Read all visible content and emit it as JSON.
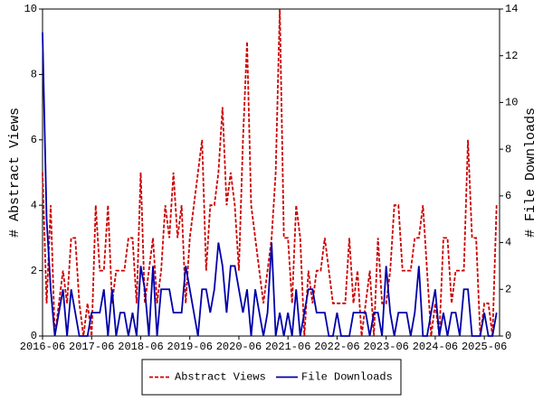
{
  "chart_data": {
    "type": "line",
    "x": [
      "2016-06",
      "2016-07",
      "2016-08",
      "2016-09",
      "2016-10",
      "2016-11",
      "2016-12",
      "2017-01",
      "2017-02",
      "2017-03",
      "2017-04",
      "2017-05",
      "2017-06",
      "2017-07",
      "2017-08",
      "2017-09",
      "2017-10",
      "2017-11",
      "2017-12",
      "2018-01",
      "2018-02",
      "2018-03",
      "2018-04",
      "2018-05",
      "2018-06",
      "2018-07",
      "2018-08",
      "2018-09",
      "2018-10",
      "2018-11",
      "2018-12",
      "2019-01",
      "2019-02",
      "2019-03",
      "2019-04",
      "2019-05",
      "2019-06",
      "2019-07",
      "2019-08",
      "2019-09",
      "2019-10",
      "2019-11",
      "2019-12",
      "2020-01",
      "2020-02",
      "2020-03",
      "2020-04",
      "2020-05",
      "2020-06",
      "2020-07",
      "2020-08",
      "2020-09",
      "2020-10",
      "2020-11",
      "2020-12",
      "2021-01",
      "2021-02",
      "2021-03",
      "2021-04",
      "2021-05",
      "2021-06",
      "2021-07",
      "2021-08",
      "2021-09",
      "2021-10",
      "2021-11",
      "2021-12",
      "2022-01",
      "2022-02",
      "2022-03",
      "2022-04",
      "2022-05",
      "2022-06",
      "2022-07",
      "2022-08",
      "2022-09",
      "2022-10",
      "2022-11",
      "2022-12",
      "2023-01",
      "2023-02",
      "2023-03",
      "2023-04",
      "2023-05",
      "2023-06",
      "2023-07",
      "2023-08",
      "2023-09",
      "2023-10",
      "2023-11",
      "2023-12",
      "2024-01",
      "2024-02",
      "2024-03",
      "2024-04",
      "2024-05",
      "2024-06",
      "2024-07",
      "2024-08",
      "2024-09",
      "2024-10",
      "2024-11",
      "2024-12",
      "2025-01",
      "2025-02",
      "2025-03",
      "2025-04",
      "2025-05",
      "2025-06",
      "2025-07",
      "2025-08",
      "2025-09"
    ],
    "xticks": [
      "2016-06",
      "2017-06",
      "2018-06",
      "2019-06",
      "2020-06",
      "2021-06",
      "2022-06",
      "2023-06",
      "2024-06",
      "2025-06"
    ],
    "ylabel": "# Abstract Views",
    "y2label": "# File Downloads",
    "ylim": [
      0,
      10
    ],
    "yticks": [
      0,
      2,
      4,
      6,
      8,
      10
    ],
    "y2lim": [
      0,
      14
    ],
    "y2ticks": [
      0,
      2,
      4,
      6,
      8,
      10,
      12,
      14
    ],
    "legend": "bottom",
    "series": [
      {
        "name": "Abstract Views",
        "color": "#cc0000",
        "dash": true,
        "values": [
          5,
          1,
          4,
          0,
          1,
          2,
          1,
          3,
          3,
          1,
          0,
          1,
          0,
          4,
          2,
          2,
          4,
          1,
          2,
          2,
          2,
          3,
          3,
          1,
          5,
          1,
          2,
          3,
          1,
          2,
          4,
          3,
          5,
          3,
          4,
          1,
          3,
          4,
          5,
          6,
          2,
          4,
          4,
          5,
          7,
          4,
          5,
          4,
          2,
          6,
          9,
          4,
          3,
          2,
          1,
          2,
          3,
          5,
          10,
          3,
          3,
          1,
          4,
          3,
          0,
          2,
          1,
          2,
          2,
          3,
          2,
          1,
          1,
          1,
          1,
          3,
          1,
          2,
          0,
          1,
          2,
          0,
          3,
          1,
          1,
          2,
          4,
          4,
          2,
          2,
          2,
          3,
          3,
          4,
          2,
          0,
          1,
          0,
          3,
          3,
          1,
          2,
          2,
          2,
          6,
          3,
          3,
          0,
          1,
          1,
          0,
          4
        ]
      },
      {
        "name": "File Downloads",
        "color": "#0000aa",
        "axis": "y2",
        "values": [
          13,
          5,
          2,
          0,
          1,
          2,
          0,
          2,
          1,
          0,
          0,
          0,
          1,
          1,
          1,
          2,
          0,
          2,
          0,
          1,
          1,
          0,
          1,
          0,
          3,
          2,
          0,
          3,
          0,
          2,
          2,
          2,
          1,
          1,
          1,
          3,
          2,
          1,
          0,
          2,
          2,
          1,
          2,
          4,
          3,
          1,
          3,
          3,
          2,
          1,
          2,
          0,
          2,
          1,
          0,
          1,
          4,
          0,
          1,
          0,
          1,
          0,
          2,
          0,
          1,
          2,
          2,
          1,
          1,
          1,
          0,
          0,
          1,
          0,
          0,
          0,
          1,
          1,
          1,
          1,
          0,
          1,
          1,
          0,
          3,
          1,
          0,
          1,
          1,
          1,
          0,
          1,
          3,
          0,
          0,
          1,
          2,
          0,
          1,
          0,
          1,
          1,
          0,
          2,
          2,
          0,
          0,
          0,
          1,
          0,
          0,
          1
        ]
      }
    ]
  }
}
